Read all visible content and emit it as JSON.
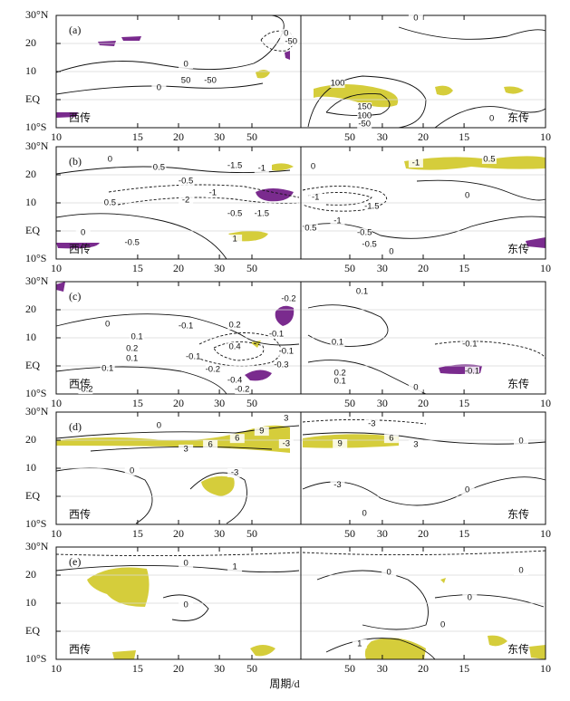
{
  "chart_data": [
    {
      "type": "contour",
      "label": "(a)",
      "annotations": [
        "西传",
        "东传"
      ],
      "xlim": [
        -0.1,
        0.1
      ],
      "ylim": [
        -10,
        30
      ],
      "grid": true,
      "xticks": [
        {
          "value": -0.1,
          "label": "10"
        },
        {
          "value": -0.0667,
          "label": "15"
        },
        {
          "value": -0.05,
          "label": "20"
        },
        {
          "value": -0.0333,
          "label": "30"
        },
        {
          "value": -0.02,
          "label": "50"
        },
        {
          "value": 0.02,
          "label": "50"
        },
        {
          "value": 0.0333,
          "label": "30"
        },
        {
          "value": 0.05,
          "label": "20"
        },
        {
          "value": 0.0667,
          "label": "15"
        },
        {
          "value": 0.1,
          "label": "10"
        }
      ],
      "yticks": [
        {
          "value": 30,
          "label": "30°N"
        },
        20,
        10,
        {
          "value": 0,
          "label": "EQ"
        },
        {
          "value": -10,
          "label": "10°S"
        }
      ],
      "contour_labels": [
        {
          "level": 0,
          "x": -0.006,
          "y": 23.5
        },
        {
          "level": -50,
          "x": -0.004,
          "y": 20.6
        },
        {
          "level": 0,
          "x": -0.047,
          "y": 12.6
        },
        {
          "level": 50,
          "x": -0.047,
          "y": 6.8
        },
        {
          "level": -50,
          "x": -0.037,
          "y": 6.8
        },
        {
          "level": 0,
          "x": -0.058,
          "y": 4.2
        },
        {
          "level": 100,
          "x": 0.015,
          "y": 5.8
        },
        {
          "level": 150,
          "x": 0.026,
          "y": -2.6
        },
        {
          "level": 100,
          "x": 0.026,
          "y": -5.8
        },
        {
          "level": -50,
          "x": 0.026,
          "y": -8.7
        },
        {
          "level": 0,
          "x": 0.078,
          "y": -6.8
        },
        {
          "level": 0,
          "x": 0.047,
          "y": 29
        }
      ]
    },
    {
      "type": "contour",
      "label": "(b)",
      "annotations": [
        "西传",
        "东传"
      ],
      "xlim": [
        -0.1,
        0.1
      ],
      "ylim": [
        -10,
        30
      ],
      "grid": true,
      "xticks": [
        {
          "value": -0.1,
          "label": "10"
        },
        {
          "value": -0.0667,
          "label": "15"
        },
        {
          "value": -0.05,
          "label": "20"
        },
        {
          "value": -0.0333,
          "label": "30"
        },
        {
          "value": -0.02,
          "label": "50"
        },
        {
          "value": 0.02,
          "label": "50"
        },
        {
          "value": 0.0333,
          "label": "30"
        },
        {
          "value": 0.05,
          "label": "20"
        },
        {
          "value": 0.0667,
          "label": "15"
        },
        {
          "value": 0.1,
          "label": "10"
        }
      ],
      "yticks": [
        {
          "value": 30,
          "label": "30°N"
        },
        20,
        10,
        {
          "value": 0,
          "label": "EQ"
        },
        {
          "value": -10,
          "label": "10°S"
        }
      ],
      "contour_labels": [
        {
          "level": 0,
          "x": -0.078,
          "y": 25.5
        },
        {
          "level": 0.5,
          "x": -0.058,
          "y": 22.6
        },
        {
          "level": -1.5,
          "x": -0.027,
          "y": 23.2
        },
        {
          "level": -1,
          "x": -0.016,
          "y": 22.3
        },
        {
          "level": -0.5,
          "x": -0.047,
          "y": 17.7
        },
        {
          "level": -1,
          "x": -0.036,
          "y": 13.5
        },
        {
          "level": -2,
          "x": -0.047,
          "y": 11
        },
        {
          "level": 0.5,
          "x": -0.078,
          "y": 10
        },
        {
          "level": -0.5,
          "x": -0.027,
          "y": 6.1
        },
        {
          "level": -1.5,
          "x": -0.016,
          "y": 6.1
        },
        {
          "level": 0,
          "x": -0.089,
          "y": -0.6
        },
        {
          "level": -0.5,
          "x": -0.069,
          "y": -4.2
        },
        {
          "level": 1,
          "x": -0.027,
          "y": -2.9
        },
        {
          "level": -1,
          "x": 0.006,
          "y": 11.9
        },
        {
          "level": -1.5,
          "x": 0.029,
          "y": 8.7
        },
        {
          "level": -1,
          "x": 0.015,
          "y": 3.5
        },
        {
          "level": 0.5,
          "x": 0.004,
          "y": 1
        },
        {
          "level": -0.5,
          "x": 0.026,
          "y": -0.6
        },
        {
          "level": -0.5,
          "x": 0.028,
          "y": -4.8
        },
        {
          "level": 0,
          "x": 0.037,
          "y": -7.4
        },
        {
          "level": 0,
          "x": 0.068,
          "y": 12.6
        },
        {
          "level": -1,
          "x": 0.047,
          "y": 24.2
        },
        {
          "level": 0.5,
          "x": 0.077,
          "y": 25.5
        },
        {
          "level": 0,
          "x": 0.005,
          "y": 22.9
        }
      ]
    },
    {
      "type": "contour",
      "label": "(c)",
      "annotations": [
        "西传",
        "东传"
      ],
      "xlim": [
        -0.1,
        0.1
      ],
      "ylim": [
        -10,
        30
      ],
      "grid": true,
      "xticks": [
        {
          "value": -0.1,
          "label": "10"
        },
        {
          "value": -0.0667,
          "label": "15"
        },
        {
          "value": -0.05,
          "label": "20"
        },
        {
          "value": -0.0333,
          "label": "30"
        },
        {
          "value": -0.02,
          "label": "50"
        },
        {
          "value": 0.02,
          "label": "50"
        },
        {
          "value": 0.0333,
          "label": "30"
        },
        {
          "value": 0.05,
          "label": "20"
        },
        {
          "value": 0.0667,
          "label": "15"
        },
        {
          "value": 0.1,
          "label": "10"
        }
      ],
      "yticks": [
        {
          "value": 30,
          "label": "30°N"
        },
        20,
        10,
        {
          "value": 0,
          "label": "EQ"
        },
        {
          "value": -10,
          "label": "10°S"
        }
      ],
      "contour_labels": [
        {
          "level": -0.2,
          "x": -0.005,
          "y": 23.9
        },
        {
          "level": 0,
          "x": -0.079,
          "y": 14.8
        },
        {
          "level": -0.1,
          "x": -0.047,
          "y": 14.2
        },
        {
          "level": 0.2,
          "x": -0.027,
          "y": 14.5
        },
        {
          "level": 0.1,
          "x": -0.067,
          "y": 10.3
        },
        {
          "level": 0.2,
          "x": -0.069,
          "y": 6.1
        },
        {
          "level": 0.1,
          "x": -0.069,
          "y": 2.6
        },
        {
          "level": 0.1,
          "x": -0.079,
          "y": -1
        },
        {
          "level": -0.2,
          "x": -0.088,
          "y": -8.4
        },
        {
          "level": -0.1,
          "x": -0.044,
          "y": 3.2
        },
        {
          "level": -0.2,
          "x": -0.036,
          "y": -1.3
        },
        {
          "level": -0.2,
          "x": -0.024,
          "y": -8.4
        },
        {
          "level": -0.4,
          "x": -0.027,
          "y": -5.2
        },
        {
          "level": 0.4,
          "x": -0.027,
          "y": 6.8
        },
        {
          "level": -0.3,
          "x": -0.008,
          "y": 0.3
        },
        {
          "level": -0.1,
          "x": -0.006,
          "y": 5.2
        },
        {
          "level": -0.1,
          "x": -0.01,
          "y": 11.3
        },
        {
          "level": 0.1,
          "x": 0.025,
          "y": 26.5
        },
        {
          "level": 0.1,
          "x": 0.015,
          "y": 8.4
        },
        {
          "level": 0.2,
          "x": 0.016,
          "y": -2.6
        },
        {
          "level": 0.1,
          "x": 0.016,
          "y": -5.5
        },
        {
          "level": 0,
          "x": 0.047,
          "y": -7.7
        },
        {
          "level": -0.1,
          "x": 0.069,
          "y": 7.7
        },
        {
          "level": -0.1,
          "x": 0.07,
          "y": -1.9
        }
      ]
    },
    {
      "type": "contour",
      "label": "(d)",
      "annotations": [
        "西传",
        "东传"
      ],
      "xlim": [
        -0.1,
        0.1
      ],
      "ylim": [
        -10,
        30
      ],
      "grid": true,
      "xticks": [
        {
          "value": -0.1,
          "label": "10"
        },
        {
          "value": -0.0667,
          "label": "15"
        },
        {
          "value": -0.05,
          "label": "20"
        },
        {
          "value": -0.0333,
          "label": "30"
        },
        {
          "value": -0.02,
          "label": "50"
        },
        {
          "value": 0.02,
          "label": "50"
        },
        {
          "value": 0.0333,
          "label": "30"
        },
        {
          "value": 0.05,
          "label": "20"
        },
        {
          "value": 0.0667,
          "label": "15"
        },
        {
          "value": 0.1,
          "label": "10"
        }
      ],
      "yticks": [
        {
          "value": 30,
          "label": "30°N"
        },
        20,
        10,
        {
          "value": 0,
          "label": "EQ"
        },
        {
          "value": -10,
          "label": "10°S"
        }
      ],
      "contour_labels": [
        {
          "level": 3,
          "x": -0.006,
          "y": 27.7
        },
        {
          "level": -3,
          "x": 0.029,
          "y": 25.8
        },
        {
          "level": 0,
          "x": -0.058,
          "y": 25.2
        },
        {
          "level": 9,
          "x": -0.016,
          "y": 23.2
        },
        {
          "level": 6,
          "x": -0.026,
          "y": 20.6
        },
        {
          "level": 6,
          "x": -0.037,
          "y": 18.4
        },
        {
          "level": 3,
          "x": -0.047,
          "y": 16.8
        },
        {
          "level": -3,
          "x": -0.006,
          "y": 18.7
        },
        {
          "level": 9,
          "x": 0.016,
          "y": 18.7
        },
        {
          "level": 6,
          "x": 0.037,
          "y": 20.6
        },
        {
          "level": 3,
          "x": 0.047,
          "y": 18.4
        },
        {
          "level": 0,
          "x": 0.09,
          "y": 19.7
        },
        {
          "level": 0,
          "x": -0.069,
          "y": 9
        },
        {
          "level": -3,
          "x": -0.027,
          "y": 8.4
        },
        {
          "level": -3,
          "x": 0.015,
          "y": 4
        },
        {
          "level": 0,
          "x": 0.068,
          "y": 2.3
        },
        {
          "level": 0,
          "x": 0.026,
          "y": -6.1
        }
      ]
    },
    {
      "type": "contour",
      "label": "(e)",
      "annotations": [
        "西传",
        "东传"
      ],
      "x_label": "周期/d",
      "xlim": [
        -0.1,
        0.1
      ],
      "ylim": [
        -10,
        30
      ],
      "grid": true,
      "xticks": [
        {
          "value": -0.1,
          "label": "10"
        },
        {
          "value": -0.0667,
          "label": "15"
        },
        {
          "value": -0.05,
          "label": "20"
        },
        {
          "value": -0.0333,
          "label": "30"
        },
        {
          "value": -0.02,
          "label": "50"
        },
        {
          "value": 0.02,
          "label": "50"
        },
        {
          "value": 0.0333,
          "label": "30"
        },
        {
          "value": 0.05,
          "label": "20"
        },
        {
          "value": 0.0667,
          "label": "15"
        },
        {
          "value": 0.1,
          "label": "10"
        }
      ],
      "yticks": [
        {
          "value": 30,
          "label": "30°N"
        },
        20,
        10,
        {
          "value": 0,
          "label": "EQ"
        },
        {
          "value": -10,
          "label": "10°S"
        }
      ],
      "contour_labels": [
        {
          "level": 0,
          "x": -0.047,
          "y": 24.2
        },
        {
          "level": 1,
          "x": -0.027,
          "y": 22.9
        },
        {
          "level": 0,
          "x": -0.047,
          "y": 9.4
        },
        {
          "level": 0,
          "x": 0.036,
          "y": 21
        },
        {
          "level": 0,
          "x": 0.09,
          "y": 21.6
        },
        {
          "level": 0,
          "x": 0.069,
          "y": 11.9
        },
        {
          "level": 0,
          "x": 0.058,
          "y": 2.3
        },
        {
          "level": 1,
          "x": 0.024,
          "y": -4.5
        }
      ]
    }
  ]
}
